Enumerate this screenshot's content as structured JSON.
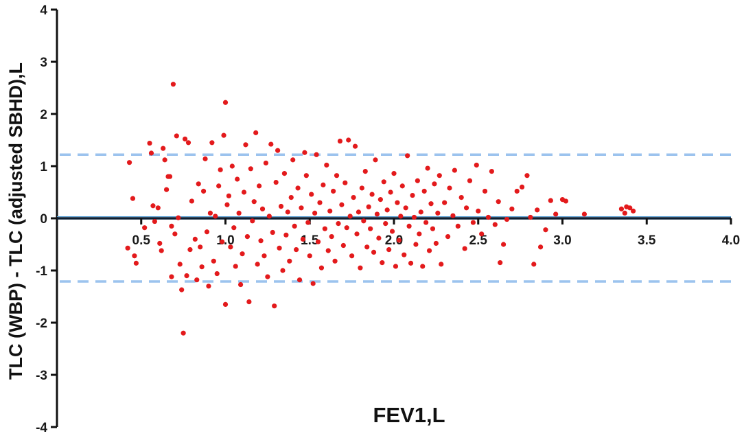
{
  "chart_data": {
    "type": "scatter",
    "xlabel": "FEV1,L",
    "ylabel": "TLC (WBP) - TLC (adjusted SBHD),L",
    "xlim": [
      0,
      4.0
    ],
    "ylim": [
      -4,
      4
    ],
    "x_ticks": [
      "0.5",
      "1.0",
      "1.5",
      "2.0",
      "2.5",
      "3.0",
      "3.5",
      "4.0"
    ],
    "y_ticks": [
      "4",
      "3",
      "2",
      "1",
      "0",
      "-1",
      "-2",
      "-3",
      "-4"
    ],
    "mean_line": 0,
    "limits_of_agreement": [
      1.22,
      -1.21
    ],
    "point_color": "#e31a1c",
    "mean_line_color": "#0b1f33",
    "loa_color": "#9cc3ee",
    "grid": false,
    "points": [
      [
        0.43,
        1.07
      ],
      [
        0.45,
        0.38
      ],
      [
        0.42,
        -0.57
      ],
      [
        0.46,
        -0.72
      ],
      [
        0.47,
        -0.86
      ],
      [
        0.52,
        -0.18
      ],
      [
        0.55,
        1.44
      ],
      [
        0.56,
        1.25
      ],
      [
        0.57,
        0.24
      ],
      [
        0.58,
        -0.06
      ],
      [
        0.6,
        0.2
      ],
      [
        0.61,
        -0.48
      ],
      [
        0.62,
        -0.62
      ],
      [
        0.63,
        1.34
      ],
      [
        0.64,
        1.12
      ],
      [
        0.65,
        0.55
      ],
      [
        0.66,
        0.8
      ],
      [
        0.67,
        0.8
      ],
      [
        0.68,
        -0.15
      ],
      [
        0.68,
        -1.12
      ],
      [
        0.69,
        2.57
      ],
      [
        0.7,
        -0.3
      ],
      [
        0.71,
        1.58
      ],
      [
        0.72,
        0.01
      ],
      [
        0.73,
        -0.88
      ],
      [
        0.74,
        -1.37
      ],
      [
        0.75,
        -2.2
      ],
      [
        0.76,
        1.52
      ],
      [
        0.77,
        -1.1
      ],
      [
        0.78,
        1.45
      ],
      [
        0.79,
        -0.6
      ],
      [
        0.8,
        0.33
      ],
      [
        0.82,
        -0.4
      ],
      [
        0.83,
        -1.18
      ],
      [
        0.84,
        0.66
      ],
      [
        0.85,
        -0.55
      ],
      [
        0.86,
        -0.93
      ],
      [
        0.87,
        0.52
      ],
      [
        0.88,
        1.14
      ],
      [
        0.89,
        -0.26
      ],
      [
        0.9,
        -1.3
      ],
      [
        0.91,
        0.1
      ],
      [
        0.92,
        1.45
      ],
      [
        0.93,
        -0.82
      ],
      [
        0.94,
        0.04
      ],
      [
        0.95,
        -1.06
      ],
      [
        0.96,
        0.62
      ],
      [
        0.97,
        0.93
      ],
      [
        0.98,
        -0.45
      ],
      [
        0.99,
        1.59
      ],
      [
        1.0,
        2.22
      ],
      [
        1.0,
        -1.65
      ],
      [
        1.01,
        0.26
      ],
      [
        1.02,
        0.43
      ],
      [
        1.03,
        -0.55
      ],
      [
        1.04,
        1.0
      ],
      [
        1.05,
        -0.18
      ],
      [
        1.06,
        -0.92
      ],
      [
        1.07,
        0.75
      ],
      [
        1.08,
        0.1
      ],
      [
        1.09,
        -1.27
      ],
      [
        1.1,
        -0.68
      ],
      [
        1.11,
        0.5
      ],
      [
        1.12,
        1.41
      ],
      [
        1.13,
        -0.35
      ],
      [
        1.14,
        -1.6
      ],
      [
        1.15,
        0.95
      ],
      [
        1.16,
        -0.05
      ],
      [
        1.17,
        0.32
      ],
      [
        1.18,
        1.64
      ],
      [
        1.19,
        -0.88
      ],
      [
        1.2,
        0.62
      ],
      [
        1.21,
        -0.43
      ],
      [
        1.22,
        0.18
      ],
      [
        1.23,
        -0.72
      ],
      [
        1.24,
        1.06
      ],
      [
        1.25,
        -1.12
      ],
      [
        1.26,
        0.04
      ],
      [
        1.27,
        1.42
      ],
      [
        1.28,
        -0.27
      ],
      [
        1.29,
        -1.68
      ],
      [
        1.3,
        0.69
      ],
      [
        1.31,
        1.3
      ],
      [
        1.32,
        -0.57
      ],
      [
        1.33,
        0.23
      ],
      [
        1.34,
        -1.0
      ],
      [
        1.35,
        0.86
      ],
      [
        1.36,
        -0.32
      ],
      [
        1.37,
        0.12
      ],
      [
        1.38,
        -0.82
      ],
      [
        1.39,
        0.4
      ],
      [
        1.4,
        1.12
      ],
      [
        1.41,
        -0.15
      ],
      [
        1.42,
        -0.6
      ],
      [
        1.43,
        0.58
      ],
      [
        1.44,
        -1.18
      ],
      [
        1.45,
        0.2
      ],
      [
        1.46,
        -0.4
      ],
      [
        1.47,
        1.26
      ],
      [
        1.48,
        0.82
      ],
      [
        1.49,
        -0.08
      ],
      [
        1.5,
        -0.72
      ],
      [
        1.51,
        0.46
      ],
      [
        1.52,
        -1.25
      ],
      [
        1.53,
        0.1
      ],
      [
        1.54,
        1.22
      ],
      [
        1.55,
        -0.45
      ],
      [
        1.56,
        0.3
      ],
      [
        1.57,
        -0.95
      ],
      [
        1.58,
        0.64
      ],
      [
        1.59,
        -0.2
      ],
      [
        1.6,
        1.02
      ],
      [
        1.61,
        -0.62
      ],
      [
        1.62,
        0.14
      ],
      [
        1.63,
        -0.35
      ],
      [
        1.64,
        0.52
      ],
      [
        1.65,
        -0.82
      ],
      [
        1.66,
        0.82
      ],
      [
        1.67,
        -0.1
      ],
      [
        1.68,
        1.48
      ],
      [
        1.69,
        0.26
      ],
      [
        1.7,
        -0.52
      ],
      [
        1.71,
        0.68
      ],
      [
        1.72,
        -0.18
      ],
      [
        1.73,
        1.5
      ],
      [
        1.74,
        0.04
      ],
      [
        1.75,
        -0.72
      ],
      [
        1.76,
        0.4
      ],
      [
        1.77,
        1.38
      ],
      [
        1.78,
        -0.3
      ],
      [
        1.79,
        0.12
      ],
      [
        1.8,
        -0.95
      ],
      [
        1.81,
        0.58
      ],
      [
        1.82,
        -0.05
      ],
      [
        1.83,
        0.9
      ],
      [
        1.84,
        -0.55
      ],
      [
        1.85,
        0.22
      ],
      [
        1.86,
        -0.2
      ],
      [
        1.87,
        0.46
      ],
      [
        1.88,
        -0.65
      ],
      [
        1.89,
        1.12
      ],
      [
        1.9,
        0.08
      ],
      [
        1.91,
        -0.38
      ],
      [
        1.92,
        0.36
      ],
      [
        1.93,
        -0.85
      ],
      [
        1.94,
        0.7
      ],
      [
        1.95,
        -0.1
      ],
      [
        1.96,
        0.16
      ],
      [
        1.97,
        -0.6
      ],
      [
        1.98,
        0.5
      ],
      [
        1.99,
        -0.25
      ],
      [
        2.0,
        0.86
      ],
      [
        2.01,
        -0.92
      ],
      [
        2.02,
        0.3
      ],
      [
        2.03,
        -0.42
      ],
      [
        2.04,
        0.04
      ],
      [
        2.05,
        0.62
      ],
      [
        2.06,
        -0.7
      ],
      [
        2.07,
        0.2
      ],
      [
        2.08,
        1.2
      ],
      [
        2.09,
        -0.15
      ],
      [
        2.1,
        -0.86
      ],
      [
        2.11,
        0.44
      ],
      [
        2.12,
        0.02
      ],
      [
        2.13,
        -0.5
      ],
      [
        2.14,
        0.72
      ],
      [
        2.15,
        -0.3
      ],
      [
        2.16,
        0.12
      ],
      [
        2.17,
        -0.92
      ],
      [
        2.18,
        0.52
      ],
      [
        2.19,
        -0.08
      ],
      [
        2.2,
        0.96
      ],
      [
        2.21,
        -0.62
      ],
      [
        2.22,
        0.28
      ],
      [
        2.23,
        -0.2
      ],
      [
        2.24,
        0.66
      ],
      [
        2.25,
        -0.48
      ],
      [
        2.26,
        0.1
      ],
      [
        2.27,
        0.82
      ],
      [
        2.28,
        -0.88
      ],
      [
        2.3,
        0.3
      ],
      [
        2.32,
        -0.35
      ],
      [
        2.33,
        0.58
      ],
      [
        2.35,
        0.05
      ],
      [
        2.36,
        0.92
      ],
      [
        2.38,
        -0.15
      ],
      [
        2.4,
        0.4
      ],
      [
        2.42,
        -0.58
      ],
      [
        2.43,
        0.2
      ],
      [
        2.45,
        0.72
      ],
      [
        2.47,
        -0.08
      ],
      [
        2.49,
        1.02
      ],
      [
        2.5,
        0.14
      ],
      [
        2.52,
        -0.3
      ],
      [
        2.54,
        0.52
      ],
      [
        2.56,
        0.02
      ],
      [
        2.58,
        0.9
      ],
      [
        2.6,
        -0.12
      ],
      [
        2.62,
        0.32
      ],
      [
        2.63,
        -0.85
      ],
      [
        2.65,
        -0.5
      ],
      [
        2.67,
        -0.02
      ],
      [
        2.7,
        0.18
      ],
      [
        2.73,
        0.52
      ],
      [
        2.76,
        0.6
      ],
      [
        2.79,
        0.82
      ],
      [
        2.81,
        0.02
      ],
      [
        2.83,
        -0.88
      ],
      [
        2.85,
        0.16
      ],
      [
        2.87,
        -0.55
      ],
      [
        2.9,
        -0.22
      ],
      [
        2.93,
        0.34
      ],
      [
        2.96,
        0.08
      ],
      [
        3.0,
        0.36
      ],
      [
        3.02,
        0.33
      ],
      [
        3.13,
        0.08
      ],
      [
        3.35,
        0.18
      ],
      [
        3.37,
        0.1
      ],
      [
        3.38,
        0.22
      ],
      [
        3.4,
        0.2
      ],
      [
        3.42,
        0.14
      ]
    ]
  }
}
